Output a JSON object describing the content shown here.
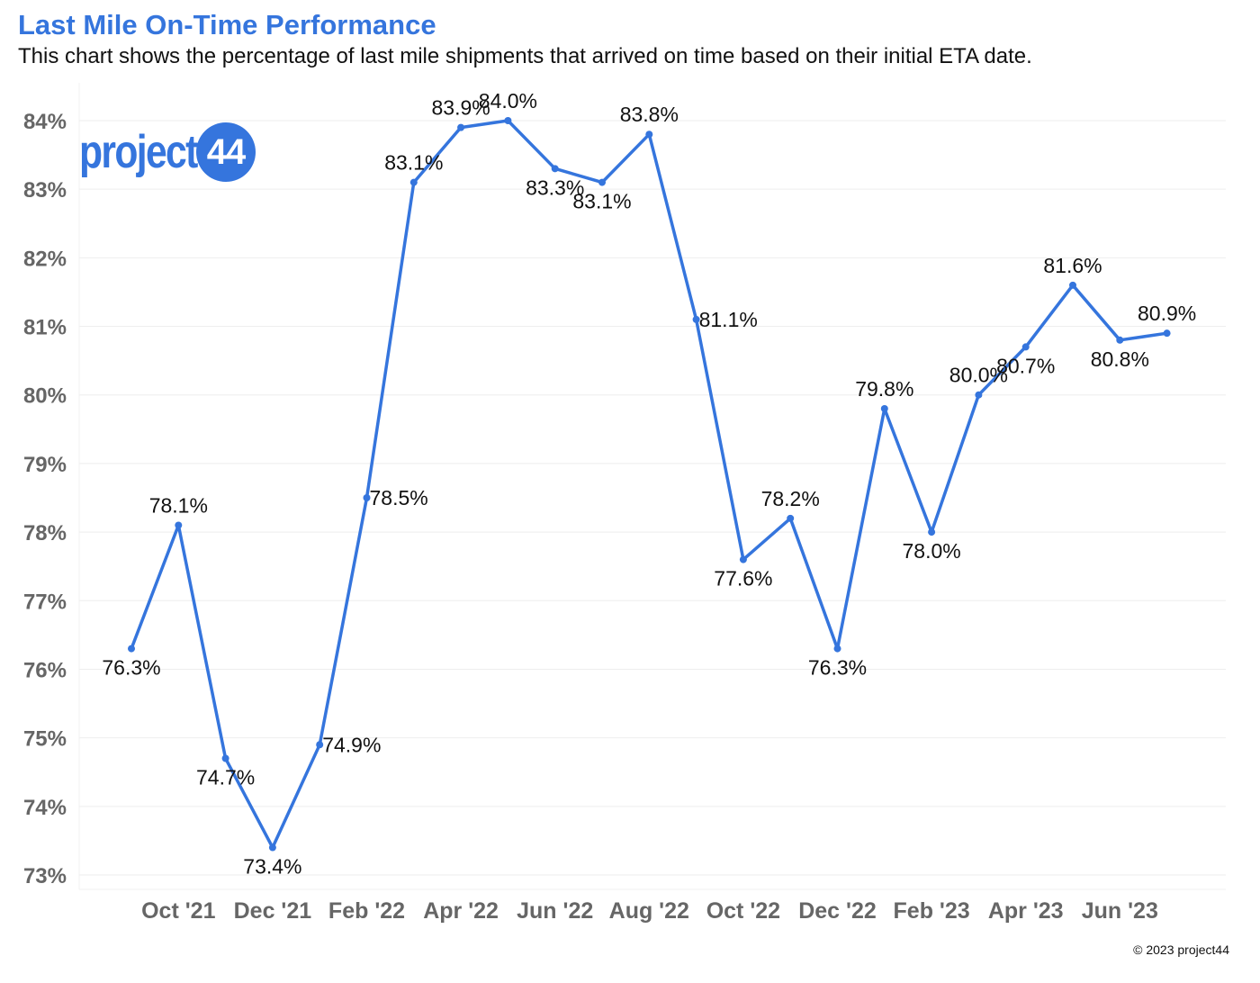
{
  "chart_data": {
    "type": "line",
    "title": "Last Mile On-Time Performance",
    "subtitle": "This chart shows the percentage of last mile shipments that arrived on time based on their initial ETA date.",
    "xlabel": "",
    "ylabel": "",
    "ylim": [
      73,
      84
    ],
    "yticks": [
      "73%",
      "74%",
      "75%",
      "76%",
      "77%",
      "78%",
      "79%",
      "80%",
      "81%",
      "82%",
      "83%",
      "84%"
    ],
    "grid": true,
    "legend": "none",
    "line_color": "#3575dd",
    "x_tick_labels": [
      "Oct '21",
      "Dec '21",
      "Feb '22",
      "Apr '22",
      "Jun '22",
      "Aug '22",
      "Oct '22",
      "Dec '22",
      "Feb '23",
      "Apr '23",
      "Jun '23"
    ],
    "series": [
      {
        "name": "On-Time %",
        "categories": [
          "Sep '21",
          "Oct '21",
          "Nov '21",
          "Dec '21",
          "Jan '22",
          "Feb '22",
          "Mar '22",
          "Apr '22",
          "May '22",
          "Jun '22",
          "Jul '22",
          "Aug '22",
          "Sep '22",
          "Oct '22",
          "Nov '22",
          "Dec '22",
          "Jan '23",
          "Feb '23",
          "Mar '23",
          "Apr '23",
          "May '23",
          "Jun '23",
          "Jul '23"
        ],
        "values": [
          76.3,
          78.1,
          74.7,
          73.4,
          74.9,
          78.5,
          83.1,
          83.9,
          84.0,
          83.3,
          83.1,
          83.8,
          81.1,
          77.6,
          78.2,
          76.3,
          79.8,
          78.0,
          80.0,
          80.7,
          81.6,
          80.8,
          80.9
        ],
        "labels": [
          "76.3%",
          "78.1%",
          "74.7%",
          "73.4%",
          "74.9%",
          "78.5%",
          "83.1%",
          "83.9%",
          "84.0%",
          "83.3%",
          "83.1%",
          "83.8%",
          "81.1%",
          "77.6%",
          "78.2%",
          "76.3%",
          "79.8%",
          "78.0%",
          "80.0%",
          "80.7%",
          "81.6%",
          "80.8%",
          "80.9%"
        ]
      }
    ]
  },
  "branding": {
    "logo_word": "project",
    "logo_badge": "44",
    "copyright": "© 2023 project44"
  }
}
